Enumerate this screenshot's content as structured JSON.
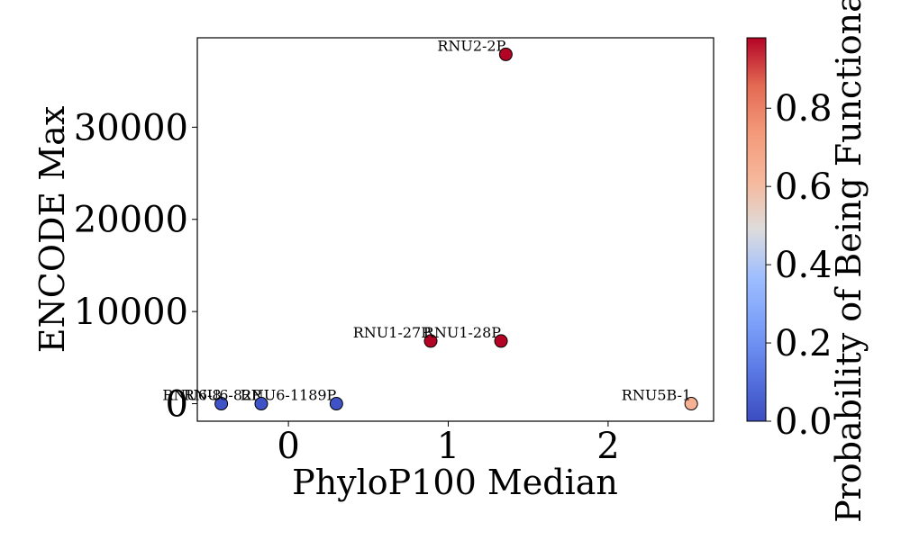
{
  "chart_data": {
    "type": "scatter",
    "title": "",
    "xlabel": "PhyloP100 Median",
    "ylabel": "ENCODE Max",
    "xlim": [
      -0.57,
      2.66
    ],
    "ylim": [
      -1900,
      39700
    ],
    "xticks": [
      0,
      1,
      2
    ],
    "yticks": [
      0,
      10000,
      20000,
      30000
    ],
    "colorbar": {
      "label": "Probability of Being Functional",
      "range": [
        0.0,
        0.98
      ],
      "ticks": [
        0.0,
        0.2,
        0.4,
        0.6,
        0.8
      ],
      "colormap": "coolwarm"
    },
    "points": [
      {
        "label": "RNU2-2P",
        "x": 1.36,
        "y": 37900,
        "p": 0.98
      },
      {
        "label": "RNU1-27P",
        "x": 0.89,
        "y": 6800,
        "p": 0.98
      },
      {
        "label": "RNU1-28P",
        "x": 1.33,
        "y": 6800,
        "p": 0.98
      },
      {
        "label": "RNU6-1189P",
        "x": 0.3,
        "y": 0,
        "p": 0.02
      },
      {
        "label": "RNU6-8",
        "x": -0.42,
        "y": 0,
        "p": 0.02
      },
      {
        "label": "RNU6-82P",
        "x": -0.17,
        "y": 0,
        "p": 0.02
      },
      {
        "label": "RNU5B-1",
        "x": 2.52,
        "y": 0,
        "p": 0.64
      }
    ],
    "grid": false,
    "legend": "none"
  }
}
